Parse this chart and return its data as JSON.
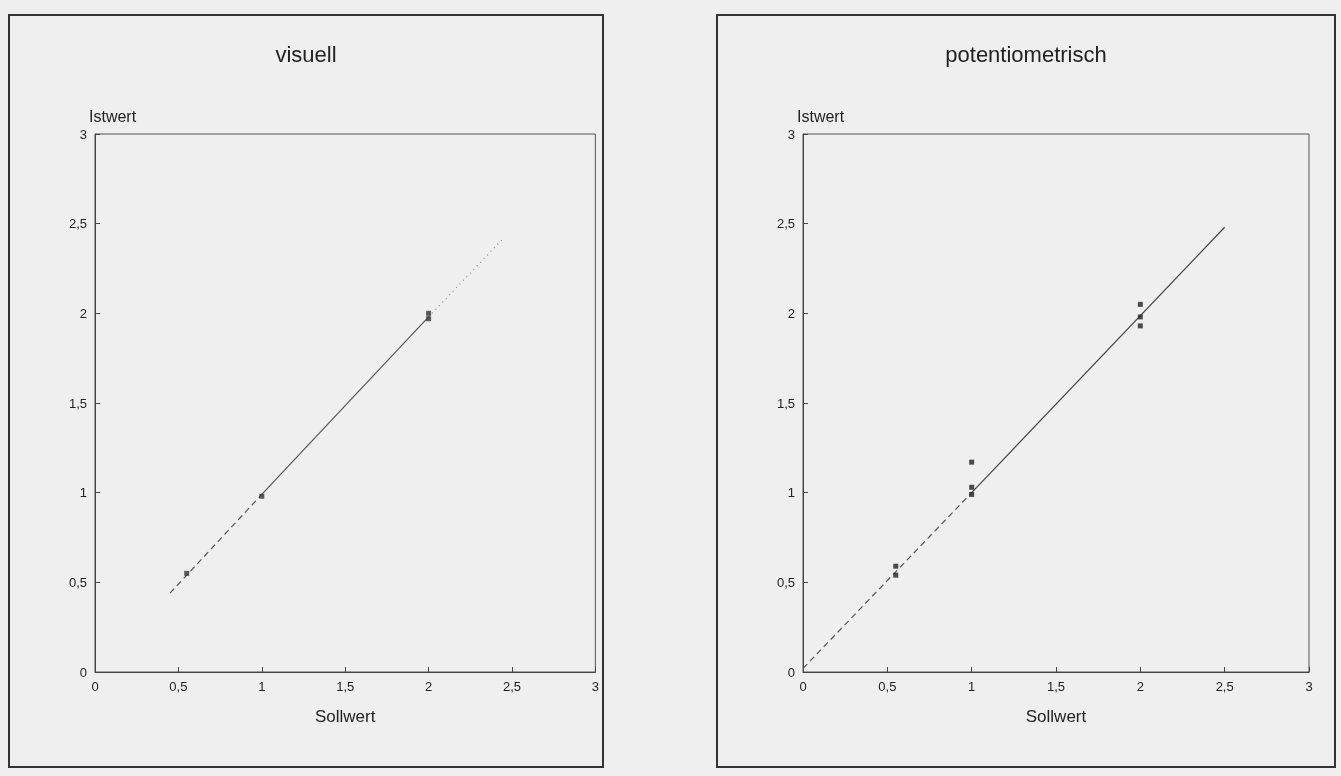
{
  "chart_data": [
    {
      "type": "scatter",
      "title": "visuell",
      "xlabel": "Sollwert",
      "ylabel": "Istwert",
      "xlim": [
        0,
        3
      ],
      "ylim": [
        0,
        3
      ],
      "xticks": [
        0,
        {
          "value": 0.5,
          "label": "0,5"
        },
        1,
        {
          "value": 1.5,
          "label": "1,5"
        },
        2,
        {
          "value": 2.5,
          "label": "2,5"
        },
        3
      ],
      "yticks": [
        0,
        {
          "value": 0.5,
          "label": "0,5"
        },
        1,
        {
          "value": 1.5,
          "label": "1,5"
        },
        2,
        {
          "value": 2.5,
          "label": "2,5"
        },
        3
      ],
      "grid": false,
      "marker": "square",
      "series": [
        {
          "color": "#333333",
          "x": [
            0.55,
            1,
            2,
            2
          ],
          "values": [
            0.55,
            0.98,
            2.0,
            1.97
          ]
        },
        {
          "type": "line",
          "color": "#555555",
          "line_style": "dashed",
          "marker": "none",
          "x": [
            0.45,
            1
          ],
          "values": [
            0.44,
            0.99
          ]
        },
        {
          "type": "line",
          "color": "#555555",
          "line_style": "solid",
          "marker": "none",
          "x": [
            1,
            2
          ],
          "values": [
            0.99,
            1.98
          ]
        },
        {
          "type": "line",
          "color": "#888888",
          "line_style": "dotted",
          "marker": "none",
          "x": [
            2,
            2.45
          ],
          "values": [
            1.98,
            2.42
          ]
        }
      ]
    },
    {
      "type": "scatter",
      "title": "potentiometrisch",
      "xlabel": "Sollwert",
      "ylabel": "Istwert",
      "xlim": [
        0,
        3
      ],
      "ylim": [
        0,
        3
      ],
      "xticks": [
        0,
        {
          "value": 0.5,
          "label": "0,5"
        },
        1,
        {
          "value": 1.5,
          "label": "1,5"
        },
        2,
        {
          "value": 2.5,
          "label": "2,5"
        },
        3
      ],
      "yticks": [
        0,
        {
          "value": 0.5,
          "label": "0,5"
        },
        1,
        {
          "value": 1.5,
          "label": "1,5"
        },
        2,
        {
          "value": 2.5,
          "label": "2,5"
        },
        3
      ],
      "grid": false,
      "marker": "square",
      "series": [
        {
          "color": "#222222",
          "x": [
            0.55,
            0.55,
            1,
            1,
            1,
            2,
            2,
            2
          ],
          "values": [
            0.59,
            0.54,
            1.17,
            1.03,
            0.99,
            2.05,
            1.98,
            1.93
          ]
        },
        {
          "type": "line",
          "color": "#555555",
          "line_style": "dashed",
          "marker": "none",
          "x": [
            0,
            1
          ],
          "values": [
            0.02,
            1.0
          ]
        },
        {
          "type": "line",
          "color": "#444444",
          "line_style": "solid",
          "marker": "none",
          "x": [
            1,
            2.5
          ],
          "values": [
            1.0,
            2.48
          ]
        }
      ]
    }
  ]
}
